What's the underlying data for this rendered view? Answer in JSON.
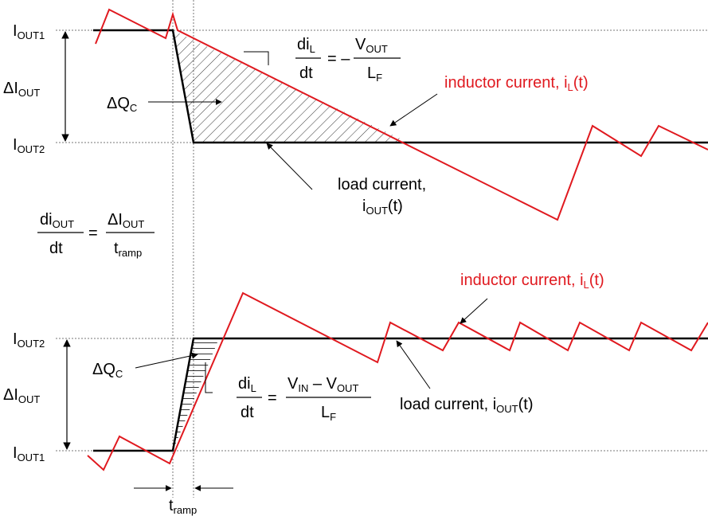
{
  "colors": {
    "inductor_current": "#e0191f",
    "load_current": "#000000",
    "guide": "#777777"
  },
  "top": {
    "iout1": {
      "base": "I",
      "sub": "OUT1"
    },
    "delta_iout": {
      "pre": "ΔI",
      "sub": "OUT"
    },
    "iout2": {
      "base": "I",
      "sub": "OUT2"
    },
    "delta_qc": {
      "pre": "ΔQ",
      "sub": "C"
    },
    "formula": {
      "num_base": "di",
      "num_sub": "L",
      "den": "dt",
      "eq": "= –",
      "rhs_num_base": "V",
      "rhs_num_sub": "OUT",
      "rhs_den_base": "L",
      "rhs_den_sub": "F"
    },
    "inductor_label": "inductor current, i",
    "inductor_label_sub": "L",
    "inductor_label_end": "(t)",
    "load_label_1": "load current,",
    "load_label_2_base": "i",
    "load_label_2_sub": "OUT",
    "load_label_2_end": "(t)"
  },
  "middle": {
    "formula": {
      "num_base": "di",
      "num_sub": "OUT",
      "den": "dt",
      "eq": "=",
      "rhs_num_pre": "ΔI",
      "rhs_num_sub": "OUT",
      "rhs_den_base": "t",
      "rhs_den_sub": "ramp"
    }
  },
  "bottom": {
    "iout2": {
      "base": "I",
      "sub": "OUT2"
    },
    "delta_iout": {
      "pre": "ΔI",
      "sub": "OUT"
    },
    "iout1": {
      "base": "I",
      "sub": "OUT1"
    },
    "delta_qc": {
      "pre": "ΔQ",
      "sub": "C"
    },
    "formula": {
      "num_base": "di",
      "num_sub": "L",
      "den": "dt",
      "eq": "=",
      "rhs_num_a": "V",
      "rhs_num_a_sub": "IN",
      "rhs_num_mid": " – ",
      "rhs_num_b": "V",
      "rhs_num_b_sub": "OUT",
      "rhs_den_base": "L",
      "rhs_den_sub": "F"
    },
    "inductor_label": "inductor current, i",
    "inductor_label_sub": "L",
    "inductor_label_end": "(t)",
    "load_label": "load current, i",
    "load_label_sub": "OUT",
    "load_label_end": "(t)"
  },
  "tramp": {
    "base": "t",
    "sub": "ramp"
  }
}
